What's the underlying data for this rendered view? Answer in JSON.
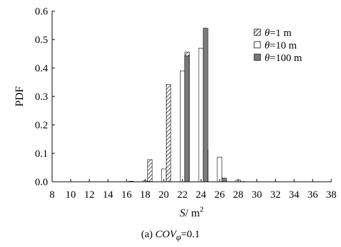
{
  "chart_data": {
    "type": "bar",
    "ylabel": "PDF",
    "xlabel": {
      "var": "S",
      "unit": "/ m",
      "sup": "2"
    },
    "xlim": [
      8,
      38
    ],
    "ylim": [
      0,
      0.6
    ],
    "xticks": [
      8,
      10,
      12,
      14,
      16,
      18,
      20,
      22,
      24,
      26,
      28,
      30,
      32,
      34,
      36,
      38
    ],
    "yticks": [
      0.0,
      0.1,
      0.2,
      0.3,
      0.4,
      0.5,
      0.6
    ],
    "ytick_labels": [
      "0.0",
      "0.1",
      "0.2",
      "0.3",
      "0.4",
      "0.5",
      "0.6"
    ],
    "legend_placement": "top-right",
    "grid": false,
    "categories": [
      17,
      18,
      19,
      20,
      21,
      22,
      23,
      24,
      25,
      26,
      27,
      28
    ],
    "series": [
      {
        "name": "=1 m",
        "symbol": "θ",
        "pattern": "hatch",
        "values": [
          0.002,
          0.0,
          0.078,
          0.0,
          0.342,
          0.0,
          0.456,
          0.0,
          0.112,
          0.0,
          0.004,
          0.0
        ]
      },
      {
        "name": "=10 m",
        "symbol": "θ",
        "pattern": "white",
        "values": [
          0.0,
          0.003,
          0.0,
          0.045,
          0.0,
          0.39,
          0.0,
          0.47,
          0.0,
          0.087,
          0.0,
          0.006
        ]
      },
      {
        "name": "=100 m",
        "symbol": "θ",
        "pattern": "gray",
        "values": [
          0.0,
          0.001,
          0.0,
          0.0,
          0.0,
          0.443,
          0.0,
          0.54,
          0.0,
          0.013,
          0.0,
          0.001
        ]
      }
    ]
  },
  "caption": {
    "prefix": "(a) ",
    "var": "COV",
    "sub": "φ",
    "suffix": "=0.1"
  }
}
